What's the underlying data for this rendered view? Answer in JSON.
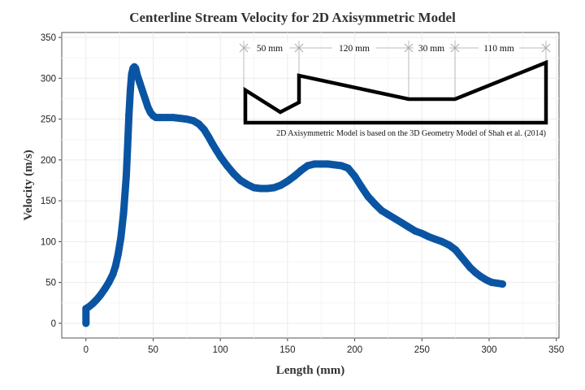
{
  "chart_data": {
    "type": "line",
    "title": "Centerline Stream Velocity for 2D Axisymmetric Model",
    "xlabel": "Length (mm)",
    "ylabel": "Velocity (m/s)",
    "xlim": [
      -18,
      352
    ],
    "ylim": [
      -18,
      356
    ],
    "xticks": [
      0,
      50,
      100,
      150,
      200,
      250,
      300,
      350
    ],
    "yticks": [
      0,
      50,
      100,
      150,
      200,
      250,
      300,
      350
    ],
    "grid": true,
    "legend": "none",
    "series": [
      {
        "color": "#0a55a3",
        "x": [
          0,
          0,
          2,
          5,
          8,
          11,
          14,
          17,
          20,
          22,
          24,
          26,
          28,
          30,
          31,
          32,
          33,
          34,
          35,
          36,
          37,
          38,
          40,
          42,
          44,
          46,
          48,
          50,
          52,
          55,
          60,
          65,
          70,
          75,
          80,
          84,
          88,
          91,
          94,
          97,
          100,
          105,
          110,
          115,
          120,
          125,
          130,
          135,
          140,
          145,
          150,
          155,
          160,
          165,
          170,
          175,
          180,
          185,
          190,
          195,
          200,
          205,
          210,
          215,
          220,
          225,
          230,
          235,
          240,
          245,
          250,
          255,
          260,
          265,
          270,
          275,
          278,
          282,
          286,
          290,
          294,
          298,
          302,
          306,
          310
        ],
        "y": [
          0,
          18,
          20,
          24,
          29,
          35,
          42,
          50,
          60,
          70,
          85,
          105,
          135,
          180,
          215,
          255,
          285,
          305,
          312,
          314,
          312,
          305,
          295,
          285,
          275,
          265,
          258,
          254,
          252,
          252,
          252,
          252,
          251,
          250,
          248,
          244,
          237,
          229,
          220,
          212,
          204,
          193,
          183,
          175,
          170,
          166,
          165,
          165,
          166,
          169,
          174,
          180,
          187,
          193,
          195,
          195,
          195,
          194,
          193,
          190,
          180,
          167,
          155,
          146,
          138,
          133,
          128,
          123,
          118,
          113,
          110,
          106,
          103,
          100,
          96,
          90,
          84,
          76,
          68,
          62,
          57,
          53,
          50,
          49,
          48
        ]
      }
    ],
    "inset": {
      "segment_labels": [
        "50 mm",
        "120 mm",
        "30 mm",
        "110 mm"
      ],
      "note": "2D Axisymmetric Model is based on the 3D Geometry Model of Shah et al. (2014)"
    }
  }
}
